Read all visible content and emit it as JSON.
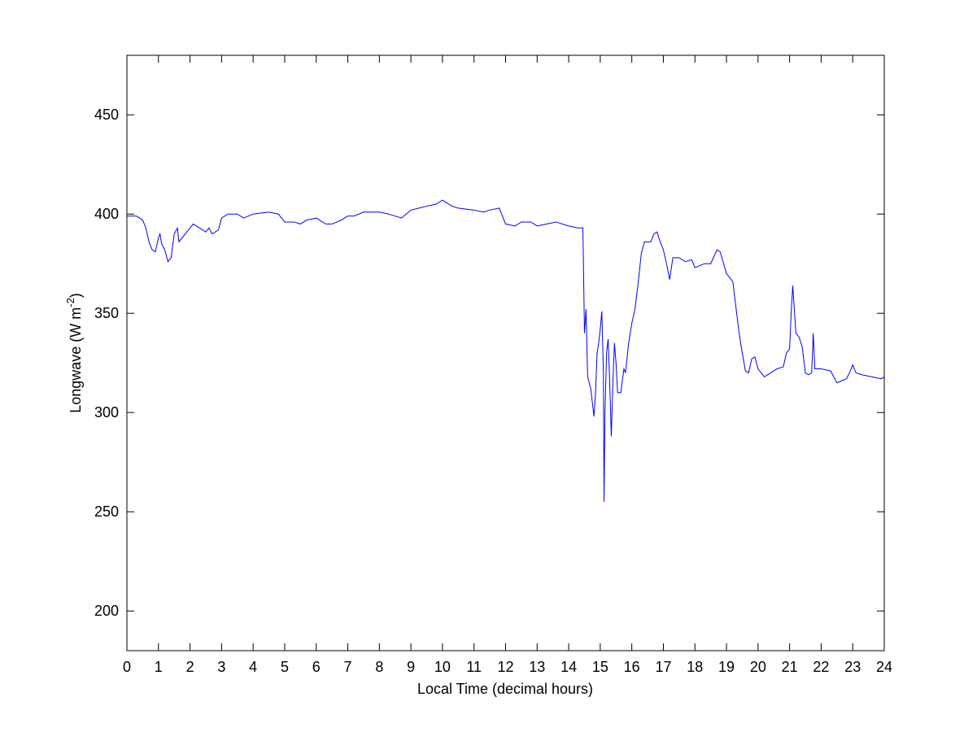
{
  "chart_data": {
    "type": "line",
    "xlabel": "Local Time (decimal hours)",
    "ylabel": [
      "Longwave (W m",
      "-2",
      ")"
    ],
    "xlim": [
      0,
      24
    ],
    "xticks": [
      0,
      1,
      2,
      3,
      4,
      5,
      6,
      7,
      8,
      9,
      10,
      11,
      12,
      13,
      14,
      15,
      16,
      17,
      18,
      19,
      20,
      21,
      22,
      23,
      24
    ],
    "ylim": [
      180,
      480
    ],
    "yticks": [
      200,
      250,
      300,
      350,
      400,
      450
    ],
    "grid": false,
    "series": [
      {
        "color": "#0000ff",
        "x": [
          0,
          0.3,
          0.5,
          0.6,
          0.7,
          0.8,
          0.9,
          1.0,
          1.05,
          1.1,
          1.2,
          1.3,
          1.4,
          1.5,
          1.6,
          1.65,
          1.8,
          2.0,
          2.1,
          2.3,
          2.5,
          2.6,
          2.7,
          2.9,
          3.0,
          3.2,
          3.5,
          3.7,
          4.0,
          4.5,
          4.8,
          5.0,
          5.3,
          5.5,
          5.7,
          6.0,
          6.3,
          6.5,
          6.8,
          7.0,
          7.2,
          7.5,
          8.0,
          8.3,
          8.7,
          9.0,
          9.5,
          9.8,
          10.0,
          10.1,
          10.3,
          10.5,
          11.0,
          11.3,
          11.5,
          11.8,
          12.0,
          12.3,
          12.5,
          12.8,
          13.0,
          13.3,
          13.6,
          14.0,
          14.3,
          14.45,
          14.5,
          14.55,
          14.6,
          14.7,
          14.75,
          14.8,
          14.85,
          14.9,
          14.95,
          15.0,
          15.05,
          15.1,
          15.12,
          15.15,
          15.2,
          15.25,
          15.3,
          15.35,
          15.4,
          15.45,
          15.5,
          15.55,
          15.65,
          15.75,
          15.8,
          15.9,
          16.0,
          16.1,
          16.2,
          16.3,
          16.4,
          16.6,
          16.7,
          16.8,
          16.9,
          17.0,
          17.1,
          17.2,
          17.3,
          17.5,
          17.7,
          17.9,
          18.0,
          18.3,
          18.5,
          18.7,
          18.8,
          19.0,
          19.2,
          19.4,
          19.5,
          19.6,
          19.7,
          19.8,
          19.9,
          20.0,
          20.2,
          20.4,
          20.6,
          20.8,
          20.9,
          21.0,
          21.05,
          21.1,
          21.15,
          21.2,
          21.3,
          21.4,
          21.5,
          21.6,
          21.7,
          21.75,
          21.8,
          22.0,
          22.3,
          22.5,
          22.8,
          22.9,
          23.0,
          23.1,
          23.3,
          23.6,
          23.9,
          24.0
        ],
        "values": [
          399,
          399,
          397,
          393,
          386,
          382,
          381,
          388,
          390,
          385,
          382,
          376,
          378,
          390,
          393,
          386,
          389,
          393,
          395,
          393,
          391,
          393,
          390,
          392,
          398,
          400,
          400,
          398,
          400,
          401,
          400,
          396,
          396,
          395,
          397,
          398,
          395,
          395,
          397,
          399,
          399,
          401,
          401,
          400,
          398,
          402,
          404,
          405,
          407,
          406,
          404,
          403,
          402,
          401,
          402,
          403,
          395,
          394,
          396,
          396,
          394,
          395,
          396,
          394,
          393,
          393,
          340,
          352,
          318,
          312,
          305,
          298,
          310,
          330,
          335,
          342,
          351,
          320,
          255,
          300,
          330,
          337,
          315,
          288,
          315,
          335,
          325,
          310,
          310,
          322,
          320,
          335,
          345,
          352,
          365,
          380,
          386,
          386,
          390,
          391,
          386,
          382,
          375,
          367,
          378,
          378,
          376,
          377,
          373,
          375,
          375,
          382,
          381,
          370,
          366,
          340,
          330,
          321,
          320,
          327,
          328,
          322,
          318,
          320,
          322,
          323,
          330,
          332,
          350,
          364,
          352,
          340,
          338,
          333,
          320,
          319,
          320,
          340,
          322,
          322,
          321,
          315,
          317,
          320,
          324,
          320,
          319,
          318,
          317,
          318
        ]
      }
    ]
  }
}
